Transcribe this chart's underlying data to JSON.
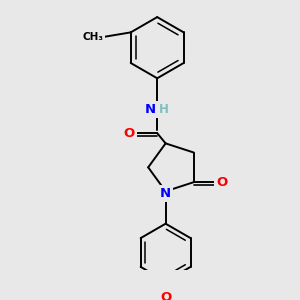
{
  "background_color": "#e8e8e8",
  "bond_color": "#000000",
  "atom_colors": {
    "N": "#0000ff",
    "O": "#ff0000",
    "H": "#7fbfbf",
    "C": "#000000"
  },
  "figsize": [
    3.0,
    3.0
  ],
  "dpi": 100
}
